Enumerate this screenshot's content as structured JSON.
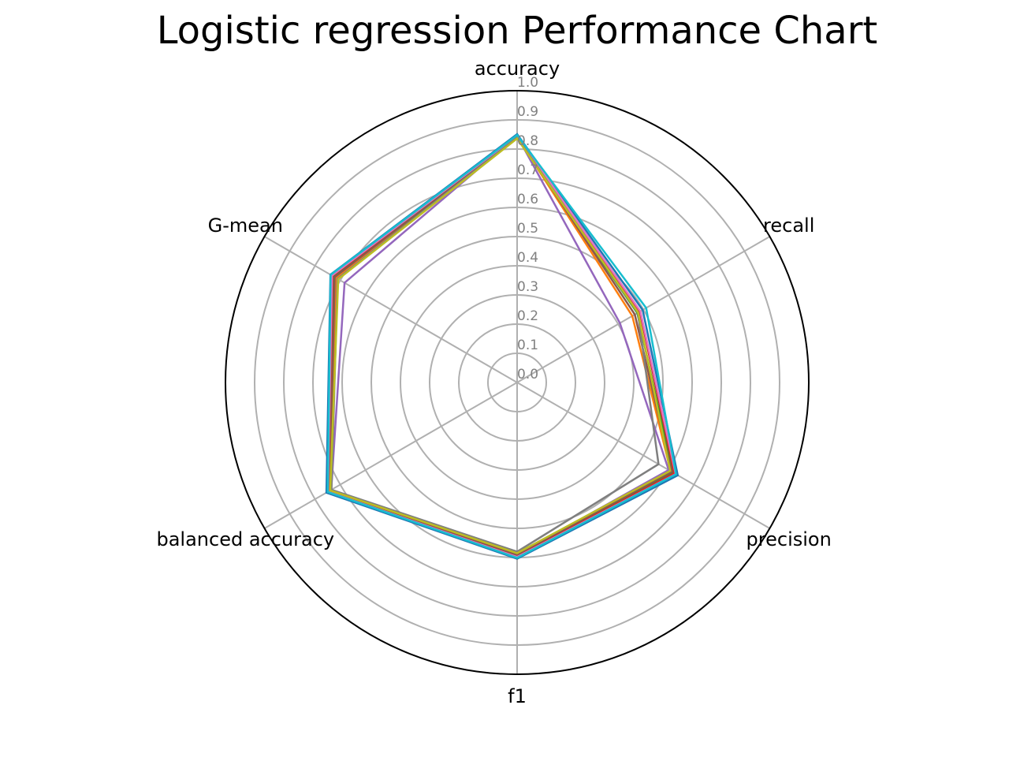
{
  "chart_data": {
    "type": "radar",
    "title": "Logistic regression Performance Chart",
    "axes": [
      "accuracy",
      "recall",
      "precision",
      "f1",
      "balanced accuracy",
      "G-mean"
    ],
    "rlim": [
      0.0,
      1.0
    ],
    "r_ticks": [
      "0.0",
      "0.1",
      "0.2",
      "0.3",
      "0.4",
      "0.5",
      "0.6",
      "0.7",
      "0.8",
      "0.9",
      "1.0"
    ],
    "grid": true,
    "legend": "none",
    "series": [
      {
        "color": "#1f77b4",
        "values": [
          0.851,
          0.497,
          0.636,
          0.604,
          0.755,
          0.739
        ]
      },
      {
        "color": "#ff7f0e",
        "values": [
          0.842,
          0.456,
          0.608,
          0.588,
          0.738,
          0.717
        ]
      },
      {
        "color": "#2ca02c",
        "values": [
          0.838,
          0.476,
          0.616,
          0.592,
          0.743,
          0.725
        ]
      },
      {
        "color": "#d62728",
        "values": [
          0.845,
          0.486,
          0.622,
          0.597,
          0.748,
          0.731
        ]
      },
      {
        "color": "#9467bd",
        "values": [
          0.845,
          0.407,
          0.6,
          0.59,
          0.736,
          0.683
        ]
      },
      {
        "color": "#8c564b",
        "values": [
          0.844,
          0.466,
          0.612,
          0.59,
          0.741,
          0.722
        ]
      },
      {
        "color": "#e377c2",
        "values": [
          0.846,
          0.488,
          0.628,
          0.598,
          0.749,
          0.733
        ]
      },
      {
        "color": "#7f7f7f",
        "values": [
          0.84,
          0.478,
          0.56,
          0.58,
          0.735,
          0.711
        ]
      },
      {
        "color": "#bcbd22",
        "values": [
          0.836,
          0.479,
          0.606,
          0.585,
          0.74,
          0.708
        ]
      },
      {
        "color": "#17becf",
        "values": [
          0.848,
          0.511,
          0.629,
          0.601,
          0.75,
          0.738
        ]
      }
    ]
  }
}
